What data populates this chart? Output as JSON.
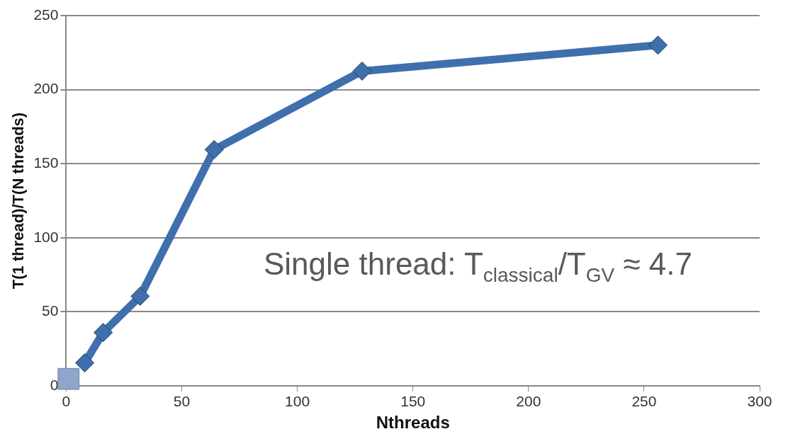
{
  "chart_data": {
    "type": "line",
    "xlabel": "Nthreads",
    "ylabel": "T(1 thread)/T(N threads)",
    "xlim": [
      0,
      300
    ],
    "xticks": [
      0,
      50,
      100,
      150,
      200,
      250,
      300
    ],
    "ylim": [
      0,
      250
    ],
    "yticks": [
      0,
      50,
      100,
      150,
      200,
      250
    ],
    "grid": "y",
    "marker": "diamond",
    "series": [
      {
        "color": "#3f6fad",
        "x": [
          8,
          16,
          32,
          64,
          128,
          256
        ],
        "values": [
          15.5,
          36,
          60.5,
          159.5,
          212.5,
          230
        ]
      },
      {
        "type": "scatter",
        "marker": "square",
        "color": "#8fa6cc",
        "x": [
          1
        ],
        "values": [
          4.7
        ]
      }
    ],
    "annotations": [
      "Single thread: T$_{classical}$/T$_{GV}$ ≈ 4.7"
    ]
  }
}
